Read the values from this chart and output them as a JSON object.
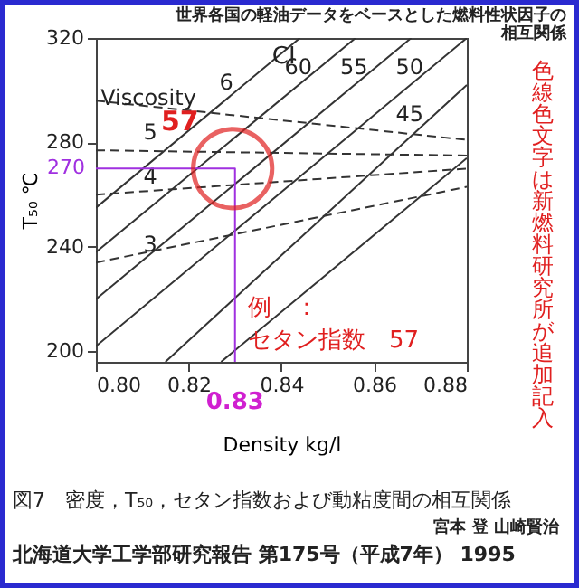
{
  "chart_data": {
    "type": "line",
    "title": "世界各国の軽油データをベースとした燃料性状因子の相互関係",
    "xlabel": "Density  kg/l",
    "ylabel": "T₅₀ ℃",
    "xlim": [
      0.8,
      0.88
    ],
    "xticks": [
      {
        "value": 0.8,
        "label": "0.80"
      },
      {
        "value": 0.82,
        "label": "0.82"
      },
      {
        "value": 0.84,
        "label": "0.84"
      },
      {
        "value": 0.86,
        "label": "0.86"
      },
      {
        "value": 0.88,
        "label": "0.88"
      }
    ],
    "ylim": [
      196,
      320
    ],
    "yticks": [
      200,
      240,
      280,
      320
    ],
    "grid": false,
    "legend": false,
    "series": [
      {
        "type": "line",
        "color": "#333333",
        "line_style": "solid",
        "x": [
          0.8,
          0.844
        ],
        "values": [
          255,
          320
        ]
      },
      {
        "name": "60",
        "type": "line",
        "color": "#333333",
        "line_style": "solid",
        "x": [
          0.8,
          0.856
        ],
        "values": [
          238,
          320
        ]
      },
      {
        "name": "55",
        "type": "line",
        "color": "#333333",
        "line_style": "solid",
        "x": [
          0.8,
          0.868
        ],
        "values": [
          220,
          320
        ]
      },
      {
        "name": "50",
        "type": "line",
        "color": "#333333",
        "line_style": "solid",
        "x": [
          0.8,
          0.88
        ],
        "values": [
          202,
          320
        ]
      },
      {
        "name": "45",
        "type": "line",
        "color": "#333333",
        "line_style": "solid",
        "x": [
          0.815,
          0.88
        ],
        "values": [
          196,
          302
        ]
      },
      {
        "type": "line",
        "color": "#333333",
        "line_style": "solid",
        "x": [
          0.827,
          0.88
        ],
        "values": [
          196,
          274
        ]
      },
      {
        "name": "6",
        "type": "line",
        "color": "#333333",
        "line_style": "dashed",
        "x": [
          0.8,
          0.88
        ],
        "values": [
          296,
          281
        ]
      },
      {
        "name": "5",
        "type": "line",
        "color": "#333333",
        "line_style": "dashed",
        "x": [
          0.8,
          0.88
        ],
        "values": [
          277,
          275
        ]
      },
      {
        "name": "4",
        "type": "line",
        "color": "#333333",
        "line_style": "dashed",
        "x": [
          0.8,
          0.88
        ],
        "values": [
          260,
          270
        ]
      },
      {
        "name": "3",
        "type": "line",
        "color": "#333333",
        "line_style": "dashed",
        "x": [
          0.8,
          0.88
        ],
        "values": [
          234,
          263
        ]
      },
      {
        "type": "line",
        "color": "#a030e0",
        "line_style": "solid",
        "x": [
          0.8,
          0.83,
          0.83
        ],
        "values": [
          270,
          270,
          196
        ]
      },
      {
        "type": "scatter",
        "color": "#e02020",
        "x": [
          0.8295
        ],
        "values": [
          270
        ]
      }
    ],
    "annotations": [
      {
        "text": "CI",
        "x": 0.838,
        "y": 313
      },
      {
        "text": "Viscosity",
        "x": 0.801,
        "y": 297
      },
      {
        "text": "270",
        "x": 0.8,
        "y": 270
      },
      {
        "text": "0.83",
        "x": 0.83,
        "y": 196
      },
      "57",
      "例　：",
      "セタン指数　57",
      "色線色文字は新燃料研究所が追加記入",
      "図7　密度，T₅₀，セタン指数および動粘度間の相互関係",
      "宮本 登  山崎賢治",
      "北海道大学工学部研究報告 第175号（平成7年） 1995"
    ]
  }
}
